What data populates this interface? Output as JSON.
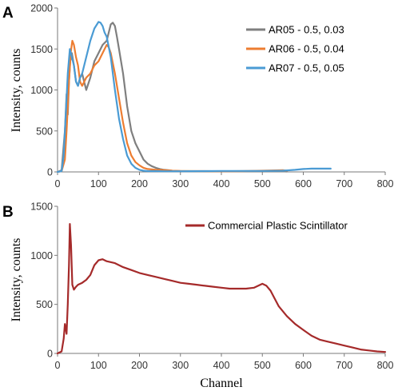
{
  "chart_data": [
    {
      "panel": "A",
      "type": "line",
      "ylabel": "Intensity, counts",
      "xlim": [
        0,
        800
      ],
      "ylim": [
        0,
        2000
      ],
      "xticks": [
        0,
        100,
        200,
        300,
        400,
        500,
        600,
        700,
        800
      ],
      "yticks": [
        0,
        500,
        1000,
        1500,
        2000
      ],
      "legend_position": "top-right",
      "grid": false,
      "series": [
        {
          "name": "AR05 - 0.5, 0.03",
          "color": "#7f7f7f",
          "x": [
            0,
            10,
            18,
            22,
            25,
            28,
            31,
            35,
            40,
            45,
            50,
            55,
            60,
            65,
            70,
            80,
            90,
            100,
            110,
            120,
            130,
            135,
            140,
            145,
            150,
            160,
            170,
            180,
            190,
            200,
            210,
            220,
            230,
            240,
            250,
            260,
            270,
            280,
            300,
            350,
            400,
            450,
            500,
            550,
            560
          ],
          "y": [
            0,
            20,
            500,
            950,
            700,
            1100,
            1350,
            1450,
            1300,
            1100,
            1050,
            1150,
            1200,
            1100,
            1000,
            1150,
            1350,
            1450,
            1550,
            1600,
            1800,
            1820,
            1780,
            1650,
            1500,
            1200,
            800,
            500,
            350,
            250,
            150,
            100,
            70,
            50,
            35,
            25,
            20,
            15,
            10,
            8,
            7,
            7,
            8,
            7,
            5
          ]
        },
        {
          "name": "AR06 - 0.5, 0.04",
          "color": "#ed7d31",
          "x": [
            0,
            10,
            18,
            22,
            28,
            32,
            36,
            40,
            45,
            50,
            55,
            60,
            70,
            80,
            90,
            100,
            110,
            115,
            120,
            125,
            130,
            140,
            150,
            160,
            170,
            180,
            190,
            200,
            210,
            220,
            240,
            260,
            280,
            300,
            350,
            400,
            450,
            500,
            550,
            560
          ],
          "y": [
            0,
            10,
            150,
            500,
            1100,
            1450,
            1600,
            1550,
            1400,
            1300,
            1100,
            1050,
            1150,
            1200,
            1300,
            1350,
            1450,
            1500,
            1550,
            1520,
            1450,
            1200,
            900,
            600,
            350,
            200,
            120,
            80,
            50,
            35,
            25,
            20,
            15,
            12,
            10,
            8,
            10,
            15,
            20,
            15
          ]
        },
        {
          "name": "AR07 - 0.5, 0.05",
          "color": "#4a9bd4",
          "x": [
            0,
            10,
            15,
            20,
            25,
            30,
            35,
            40,
            45,
            50,
            55,
            60,
            70,
            80,
            90,
            100,
            105,
            110,
            115,
            120,
            130,
            140,
            150,
            160,
            170,
            180,
            190,
            200,
            210,
            220,
            240,
            260,
            280,
            300,
            350,
            400,
            450,
            500,
            550,
            580,
            600,
            620,
            640,
            660,
            667
          ],
          "y": [
            0,
            10,
            200,
            700,
            1200,
            1500,
            1400,
            1300,
            1100,
            1050,
            1150,
            1200,
            1400,
            1600,
            1750,
            1830,
            1820,
            1780,
            1700,
            1650,
            1400,
            1000,
            650,
            400,
            200,
            100,
            50,
            25,
            15,
            10,
            10,
            8,
            8,
            8,
            10,
            12,
            12,
            12,
            15,
            25,
            35,
            40,
            40,
            40,
            40
          ]
        }
      ]
    },
    {
      "panel": "B",
      "type": "line",
      "xlabel": "Channel",
      "ylabel": "Intensity, counts",
      "xlim": [
        0,
        800
      ],
      "ylim": [
        0,
        1500
      ],
      "xticks": [
        0,
        100,
        200,
        300,
        400,
        500,
        600,
        700,
        800
      ],
      "yticks": [
        0,
        500,
        1000,
        1500
      ],
      "legend_position": "top-right",
      "grid": false,
      "series": [
        {
          "name": "Commercial Plastic Scintillator",
          "color": "#a52a2a",
          "x": [
            0,
            10,
            15,
            18,
            20,
            22,
            25,
            28,
            30,
            33,
            36,
            40,
            45,
            50,
            60,
            70,
            80,
            90,
            100,
            110,
            120,
            140,
            160,
            180,
            200,
            220,
            240,
            260,
            280,
            300,
            320,
            340,
            360,
            380,
            400,
            420,
            440,
            460,
            480,
            500,
            510,
            520,
            530,
            540,
            560,
            580,
            600,
            620,
            640,
            660,
            680,
            700,
            720,
            740,
            760,
            780,
            800
          ],
          "y": [
            0,
            20,
            150,
            300,
            250,
            200,
            500,
            900,
            1320,
            1100,
            700,
            650,
            680,
            700,
            720,
            750,
            800,
            900,
            950,
            960,
            940,
            920,
            880,
            850,
            820,
            800,
            780,
            760,
            740,
            720,
            710,
            700,
            690,
            680,
            670,
            660,
            660,
            660,
            670,
            710,
            690,
            640,
            560,
            480,
            380,
            300,
            240,
            180,
            140,
            120,
            100,
            80,
            60,
            40,
            30,
            20,
            15
          ]
        }
      ]
    }
  ]
}
